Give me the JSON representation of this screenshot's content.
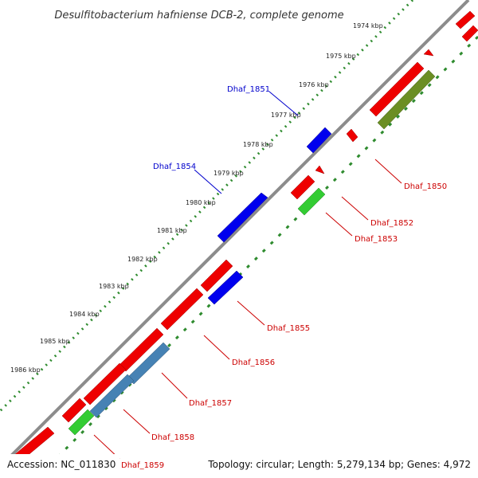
{
  "title": "Desulfitobacterium hafniense DCB-2, complete genome",
  "footer": {
    "accession": "Accession: NC_011830",
    "topology": "Topology: circular; Length: 5,279,134 bp; Genes: 4,972"
  },
  "tick_labels": [
    "1974 kbp",
    "1975 kbp",
    "1976 kbp",
    "1977 kbp",
    "1978 kbp",
    "1979 kbp",
    "1980 kbp",
    "1981 kbp",
    "1982 kbp",
    "1983 kbp",
    "1984 kbp",
    "1985 kbp",
    "1986 kbp"
  ],
  "gene_labels": [
    {
      "id": "Dhaf_1850",
      "color": "#cc0000"
    },
    {
      "id": "Dhaf_1851",
      "color": "#0000cc"
    },
    {
      "id": "Dhaf_1852",
      "color": "#cc0000"
    },
    {
      "id": "Dhaf_1853",
      "color": "#cc0000"
    },
    {
      "id": "Dhaf_1854",
      "color": "#0000cc"
    },
    {
      "id": "Dhaf_1855",
      "color": "#cc0000"
    },
    {
      "id": "Dhaf_1856",
      "color": "#cc0000"
    },
    {
      "id": "Dhaf_1857",
      "color": "#cc0000"
    },
    {
      "id": "Dhaf_1858",
      "color": "#cc0000"
    },
    {
      "id": "Dhaf_1859",
      "color": "#cc0000"
    }
  ],
  "colors": {
    "backbone": "#8c8c8c",
    "tick_dots": "#2e8b2e",
    "gene_red": "#ee0000",
    "gene_blue": "#0000ee",
    "gene_steel": "#4682b4",
    "gene_green": "#33cc33",
    "gene_olive": "#6b8e23"
  }
}
